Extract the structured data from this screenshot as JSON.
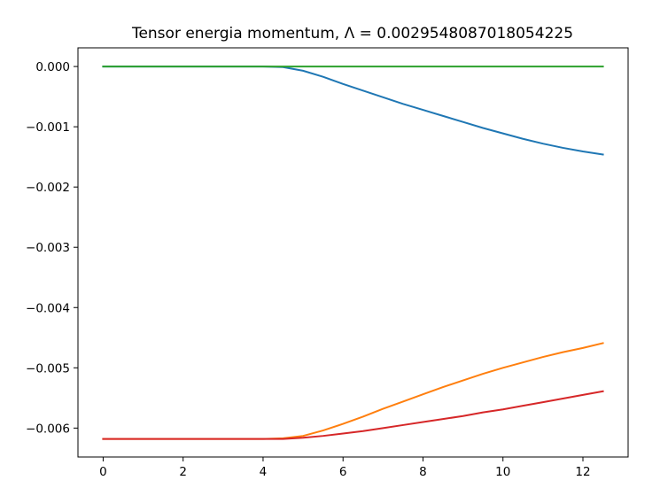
{
  "chart_data": {
    "type": "line",
    "title": "Tensor energia momentum, Λ = 0.0029548087018054225",
    "xlabel": "",
    "ylabel": "",
    "xlim": [
      -0.63,
      13.13
    ],
    "ylim": [
      -0.00648,
      0.00031
    ],
    "x_ticks": [
      0,
      2,
      4,
      6,
      8,
      10,
      12
    ],
    "y_ticks": [
      0.0,
      -0.001,
      -0.002,
      -0.003,
      -0.004,
      -0.005,
      -0.006
    ],
    "x_tick_labels": [
      "0",
      "2",
      "4",
      "6",
      "8",
      "10",
      "12"
    ],
    "y_tick_labels": [
      "0.000",
      "−0.001",
      "−0.002",
      "−0.003",
      "−0.004",
      "−0.005",
      "−0.006"
    ],
    "grid": false,
    "legend": "none",
    "series": [
      {
        "color": "#1f77b4",
        "x": [
          0,
          1,
          2,
          3,
          4,
          4.5,
          5,
          5.5,
          6,
          6.5,
          7,
          7.5,
          8,
          8.5,
          9,
          9.5,
          10,
          10.5,
          11,
          11.5,
          12,
          12.5
        ],
        "y": [
          0.0,
          0.0,
          0.0,
          0.0,
          0.0,
          -1e-05,
          -7e-05,
          -0.00017,
          -0.00029,
          -0.0004,
          -0.00051,
          -0.00062,
          -0.00072,
          -0.00082,
          -0.00092,
          -0.00102,
          -0.00111,
          -0.0012,
          -0.00128,
          -0.00135,
          -0.00141,
          -0.00146
        ]
      },
      {
        "color": "#ff7f0e",
        "x": [
          0,
          1,
          2,
          3,
          4,
          4.5,
          5,
          5.5,
          6,
          6.5,
          7,
          7.5,
          8,
          8.5,
          9,
          9.5,
          10,
          10.5,
          11,
          11.5,
          12,
          12.5
        ],
        "y": [
          -0.00618,
          -0.00618,
          -0.00618,
          -0.00618,
          -0.00618,
          -0.00617,
          -0.00613,
          -0.00604,
          -0.00593,
          -0.00581,
          -0.00568,
          -0.00556,
          -0.00544,
          -0.00532,
          -0.00521,
          -0.0051,
          -0.005,
          -0.00491,
          -0.00482,
          -0.00474,
          -0.00467,
          -0.00459
        ]
      },
      {
        "color": "#2ca02c",
        "x": [
          0,
          2,
          4,
          6,
          8,
          10,
          12,
          12.5
        ],
        "y": [
          0.0,
          0.0,
          0.0,
          0.0,
          0.0,
          0.0,
          0.0,
          0.0
        ]
      },
      {
        "color": "#d62728",
        "x": [
          0,
          1,
          2,
          3,
          4,
          4.5,
          5,
          5.5,
          6,
          6.5,
          7,
          7.5,
          8,
          8.5,
          9,
          9.5,
          10,
          10.5,
          11,
          11.5,
          12,
          12.5
        ],
        "y": [
          -0.00618,
          -0.00618,
          -0.00618,
          -0.00618,
          -0.00618,
          -0.00618,
          -0.00616,
          -0.00613,
          -0.00609,
          -0.00605,
          -0.006,
          -0.00595,
          -0.0059,
          -0.00585,
          -0.0058,
          -0.00574,
          -0.00569,
          -0.00563,
          -0.00557,
          -0.00551,
          -0.00545,
          -0.00539
        ]
      }
    ]
  }
}
